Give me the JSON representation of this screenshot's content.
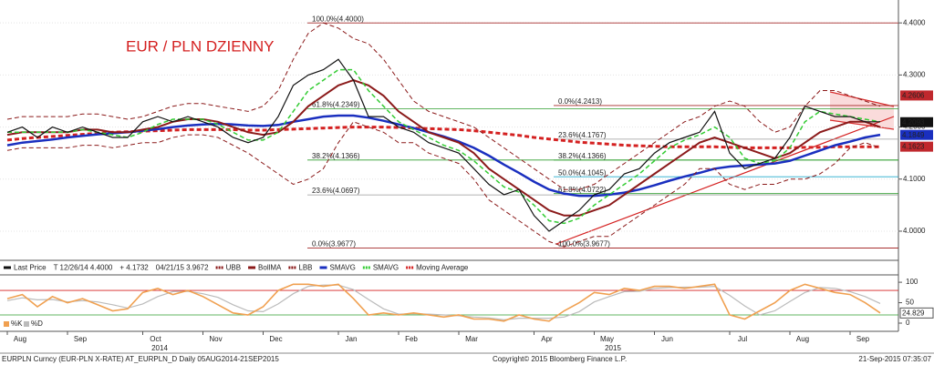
{
  "chart_data": {
    "type": "line",
    "title": "EUR / PLN DZIENNY",
    "categories": [
      "Aug",
      null,
      null,
      null,
      "Sep",
      null,
      null,
      null,
      null,
      "Oct",
      null,
      null,
      null,
      "Nov",
      null,
      null,
      null,
      "Dec",
      null,
      null,
      null,
      null,
      "Jan",
      null,
      null,
      null,
      "Feb",
      null,
      null,
      null,
      "Mar",
      null,
      null,
      null,
      null,
      "Apr",
      null,
      null,
      null,
      "May",
      null,
      null,
      null,
      "Jun",
      null,
      null,
      null,
      null,
      "Jul",
      null,
      null,
      null,
      "Aug",
      null,
      null,
      null,
      "Sep",
      null,
      null
    ],
    "years": [
      "2014",
      "2015"
    ],
    "ylim": [
      3.944,
      4.444
    ],
    "yticks": [
      {
        "value": 4.0,
        "label": "4.0000"
      },
      {
        "value": 4.1,
        "label": "4.1000"
      },
      {
        "value": 4.2,
        "label": "4.2000"
      },
      {
        "value": 4.3,
        "label": "4.3000"
      },
      {
        "value": 4.4,
        "label": "4.4000"
      }
    ],
    "grid": true,
    "series": [
      {
        "name": "Last Price",
        "color": "#111111",
        "dash": false,
        "width": 1.2,
        "values": [
          4.19,
          4.2,
          4.18,
          4.2,
          4.19,
          4.2,
          4.19,
          4.18,
          4.18,
          4.21,
          4.22,
          4.21,
          4.22,
          4.21,
          4.2,
          4.18,
          4.17,
          4.18,
          4.22,
          4.28,
          4.3,
          4.31,
          4.33,
          4.29,
          4.22,
          4.22,
          4.2,
          4.19,
          4.17,
          4.16,
          4.15,
          4.12,
          4.09,
          4.07,
          4.08,
          4.03,
          4.0,
          4.02,
          4.04,
          4.07,
          4.08,
          4.11,
          4.12,
          4.15,
          4.17,
          4.18,
          4.19,
          4.23,
          4.15,
          4.12,
          4.13,
          4.14,
          4.18,
          4.24,
          4.23,
          4.22,
          4.22,
          4.21,
          4.21
        ]
      },
      {
        "name": "UBB",
        "color": "#8b1a1a",
        "dash": true,
        "width": 1,
        "values": [
          4.215,
          4.22,
          4.22,
          4.22,
          4.22,
          4.225,
          4.225,
          4.22,
          4.215,
          4.22,
          4.23,
          4.24,
          4.245,
          4.245,
          4.24,
          4.235,
          4.23,
          4.24,
          4.27,
          4.33,
          4.38,
          4.4,
          4.39,
          4.37,
          4.36,
          4.33,
          4.29,
          4.25,
          4.23,
          4.22,
          4.21,
          4.2,
          4.18,
          4.16,
          4.14,
          4.12,
          4.1,
          4.08,
          4.08,
          4.09,
          4.11,
          4.13,
          4.15,
          4.17,
          4.19,
          4.21,
          4.22,
          4.24,
          4.25,
          4.24,
          4.21,
          4.19,
          4.2,
          4.24,
          4.27,
          4.27,
          4.26,
          4.25,
          4.24
        ]
      },
      {
        "name": "BollMA",
        "color": "#8b1a1a",
        "dash": false,
        "width": 2,
        "values": [
          4.185,
          4.19,
          4.19,
          4.19,
          4.19,
          4.195,
          4.195,
          4.19,
          4.19,
          4.195,
          4.2,
          4.21,
          4.215,
          4.215,
          4.21,
          4.2,
          4.19,
          4.185,
          4.19,
          4.21,
          4.24,
          4.26,
          4.28,
          4.29,
          4.28,
          4.26,
          4.23,
          4.21,
          4.19,
          4.18,
          4.17,
          4.15,
          4.12,
          4.1,
          4.08,
          4.06,
          4.04,
          4.03,
          4.03,
          4.04,
          4.05,
          4.07,
          4.09,
          4.11,
          4.13,
          4.15,
          4.17,
          4.18,
          4.17,
          4.16,
          4.15,
          4.14,
          4.15,
          4.17,
          4.19,
          4.2,
          4.21,
          4.21,
          4.2
        ]
      },
      {
        "name": "LBB",
        "color": "#8b1a1a",
        "dash": true,
        "width": 1,
        "values": [
          4.155,
          4.16,
          4.16,
          4.16,
          4.16,
          4.165,
          4.165,
          4.16,
          4.165,
          4.17,
          4.17,
          4.18,
          4.185,
          4.185,
          4.18,
          4.165,
          4.15,
          4.13,
          4.11,
          4.09,
          4.1,
          4.12,
          4.17,
          4.21,
          4.2,
          4.19,
          4.17,
          4.17,
          4.15,
          4.14,
          4.13,
          4.1,
          4.06,
          4.04,
          4.02,
          4.0,
          3.98,
          3.97,
          3.98,
          3.99,
          3.99,
          4.01,
          4.03,
          4.05,
          4.07,
          4.09,
          4.12,
          4.12,
          4.09,
          4.08,
          4.09,
          4.09,
          4.1,
          4.1,
          4.11,
          4.13,
          4.16,
          4.17,
          4.16
        ]
      },
      {
        "name": "SMAVG",
        "color": "#1a2fbf",
        "dash": false,
        "width": 2.5,
        "values": [
          4.165,
          4.17,
          4.173,
          4.176,
          4.18,
          4.183,
          4.186,
          4.188,
          4.19,
          4.193,
          4.196,
          4.2,
          4.203,
          4.205,
          4.206,
          4.205,
          4.203,
          4.202,
          4.204,
          4.21,
          4.215,
          4.22,
          4.222,
          4.222,
          4.218,
          4.212,
          4.205,
          4.198,
          4.19,
          4.182,
          4.172,
          4.16,
          4.145,
          4.128,
          4.112,
          4.095,
          4.08,
          4.072,
          4.068,
          4.068,
          4.07,
          4.074,
          4.08,
          4.088,
          4.097,
          4.105,
          4.112,
          4.12,
          4.124,
          4.126,
          4.128,
          4.13,
          4.135,
          4.145,
          4.155,
          4.165,
          4.172,
          4.18,
          4.185
        ]
      },
      {
        "name": "SMAVG",
        "color": "#33cc33",
        "dash": true,
        "width": 1.5,
        "values": [
          4.19,
          4.19,
          4.19,
          4.19,
          4.19,
          4.195,
          4.19,
          4.185,
          4.18,
          4.19,
          4.205,
          4.215,
          4.215,
          4.215,
          4.205,
          4.19,
          4.175,
          4.175,
          4.19,
          4.23,
          4.27,
          4.29,
          4.31,
          4.31,
          4.27,
          4.24,
          4.21,
          4.195,
          4.18,
          4.165,
          4.155,
          4.135,
          4.11,
          4.085,
          4.075,
          4.05,
          4.02,
          4.015,
          4.025,
          4.05,
          4.07,
          4.09,
          4.11,
          4.135,
          4.16,
          4.175,
          4.185,
          4.2,
          4.18,
          4.14,
          4.13,
          4.135,
          4.16,
          4.21,
          4.23,
          4.225,
          4.22,
          4.215,
          4.21
        ]
      },
      {
        "name": "Moving Average",
        "color": "#d42020",
        "dash": true,
        "width": 3,
        "values": [
          4.175,
          4.178,
          4.18,
          4.182,
          4.184,
          4.186,
          4.188,
          4.19,
          4.191,
          4.192,
          4.193,
          4.194,
          4.195,
          4.195,
          4.195,
          4.195,
          4.194,
          4.194,
          4.195,
          4.196,
          4.197,
          4.198,
          4.199,
          4.2,
          4.2,
          4.2,
          4.199,
          4.198,
          4.197,
          4.196,
          4.195,
          4.193,
          4.19,
          4.187,
          4.184,
          4.18,
          4.177,
          4.174,
          4.171,
          4.169,
          4.167,
          4.165,
          4.164,
          4.163,
          4.162,
          4.162,
          4.162,
          4.162,
          4.161,
          4.16,
          4.16,
          4.16,
          4.16,
          4.161,
          4.161,
          4.162,
          4.162,
          4.162,
          4.162
        ]
      }
    ],
    "legend_notes": [
      "T 12/26/14 4.4000",
      "+ 4.1732",
      "04/21/15 3.9672"
    ],
    "last_values": [
      {
        "value": 4.2606,
        "color": "#c0282d"
      },
      {
        "value": 4.2093,
        "color": "#111111"
      },
      {
        "value": 4.1849,
        "color": "#1a2fbf"
      },
      {
        "value": 4.1623,
        "color": "#c0282d"
      }
    ],
    "fib_left": [
      {
        "value": 4.4,
        "label": "100.0%(4.4000)",
        "color": "#a52a2a"
      },
      {
        "value": 4.2349,
        "label": "61.8%(4.2349)",
        "color": "#2e9e2e"
      },
      {
        "value": 4.1366,
        "label": "38.2%(4.1366)",
        "color": "#2e9e2e"
      },
      {
        "value": 4.0697,
        "label": "23.6%(4.0697)",
        "color": "#999999"
      },
      {
        "value": 3.9677,
        "label": "0.0%(3.9677)",
        "color": "#a52a2a"
      }
    ],
    "fib_right": [
      {
        "value": 4.2413,
        "label": "0.0%(4.2413)",
        "color": "#a52a2a"
      },
      {
        "value": 4.1767,
        "label": "23.6%(4.1767)",
        "color": "#999999"
      },
      {
        "value": 4.1366,
        "label": "38.2%(4.1366)",
        "color": "#2e9e2e"
      },
      {
        "value": 4.1045,
        "label": "50.0%(4.1045)",
        "color": "#22aacc"
      },
      {
        "value": 4.0722,
        "label": "61.8%(4.0722)",
        "color": "#2e9e2e"
      },
      {
        "value": 3.9677,
        "label": "100.0%(3.9677)",
        "color": "#a52a2a"
      }
    ],
    "stochastic": {
      "ylim": [
        -20,
        118
      ],
      "yticks": [
        0,
        50,
        100
      ],
      "levels": [
        {
          "value": 80,
          "color": "#d42020"
        },
        {
          "value": 20,
          "color": "#2e9e2e"
        }
      ],
      "series": [
        {
          "name": "%K",
          "color": "#f0a050",
          "values": [
            60,
            70,
            40,
            65,
            50,
            60,
            45,
            30,
            35,
            75,
            85,
            70,
            80,
            65,
            45,
            25,
            20,
            40,
            80,
            95,
            95,
            90,
            95,
            60,
            20,
            25,
            20,
            25,
            20,
            15,
            20,
            10,
            10,
            5,
            20,
            10,
            5,
            30,
            50,
            75,
            70,
            85,
            80,
            90,
            90,
            85,
            90,
            95,
            20,
            10,
            30,
            50,
            80,
            95,
            85,
            75,
            70,
            50,
            25
          ]
        },
        {
          "name": "%D",
          "color": "#bbbbbb",
          "values": [
            55,
            62,
            57,
            58,
            52,
            55,
            52,
            45,
            37,
            47,
            65,
            77,
            78,
            72,
            63,
            45,
            30,
            28,
            47,
            72,
            90,
            93,
            93,
            82,
            58,
            35,
            22,
            23,
            22,
            20,
            18,
            15,
            13,
            8,
            12,
            12,
            12,
            15,
            28,
            52,
            65,
            77,
            78,
            85,
            87,
            88,
            88,
            90,
            68,
            42,
            20,
            30,
            53,
            75,
            87,
            85,
            77,
            65,
            48
          ]
        }
      ],
      "last_value": 24.829
    },
    "footer_left": "EURPLN Curncy (EUR-PLN X-RATE) AT_EURPLN_D  Daily 05AUG2014-21SEP2015",
    "footer_center": "Copyright© 2015 Bloomberg Finance L.P.",
    "footer_right": "21-Sep-2015 07:35:07"
  }
}
